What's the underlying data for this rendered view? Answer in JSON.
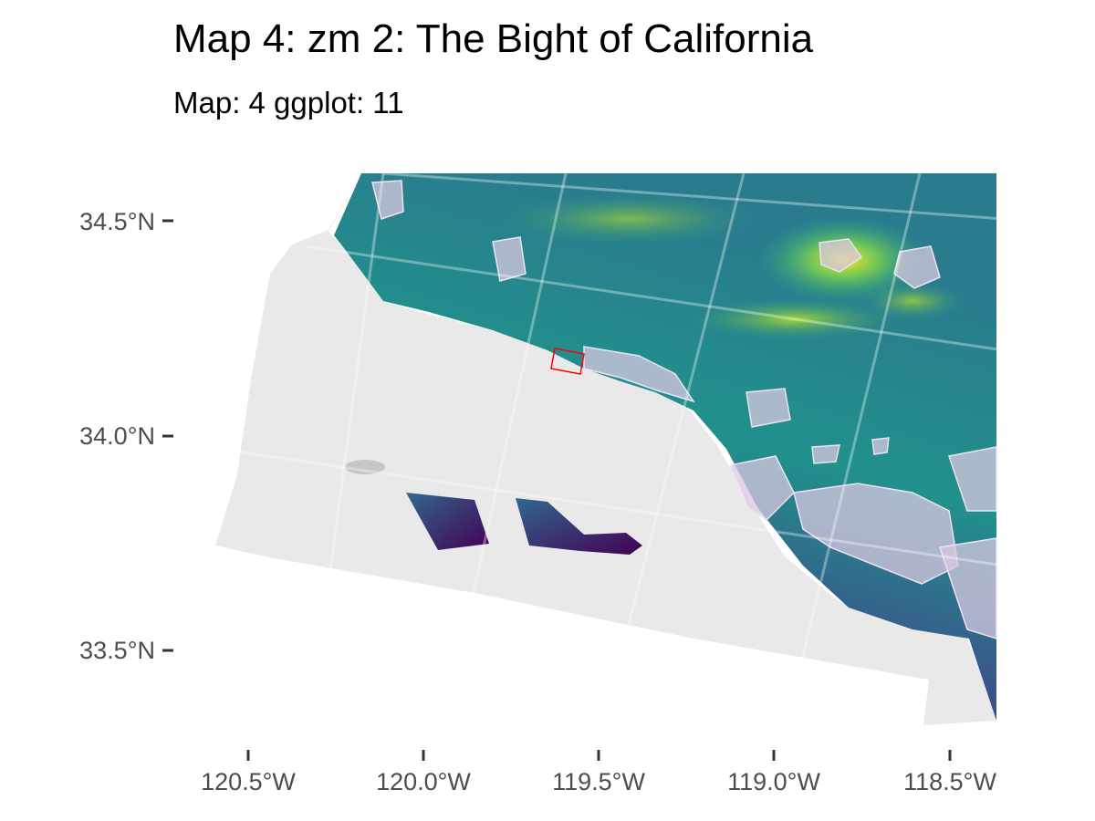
{
  "title": "Map 4: zm 2: The Bight of California",
  "subtitle": "Map: 4  ggplot: 11",
  "axes": {
    "y_ticks": [
      "34.5°N",
      "34.0°N",
      "33.5°N"
    ],
    "x_ticks": [
      "120.5°W",
      "120.0°W",
      "119.5°W",
      "119.0°W",
      "118.5°W"
    ]
  },
  "legend": [],
  "colors": {
    "ocean": "#e9e9e9",
    "elev_low": "#440154",
    "elev_mid": "#21918c",
    "elev_high": "#fde725",
    "urban": "#d8c8e0",
    "highlight_box": "#ff0000",
    "graticule": "#ffffff"
  }
}
